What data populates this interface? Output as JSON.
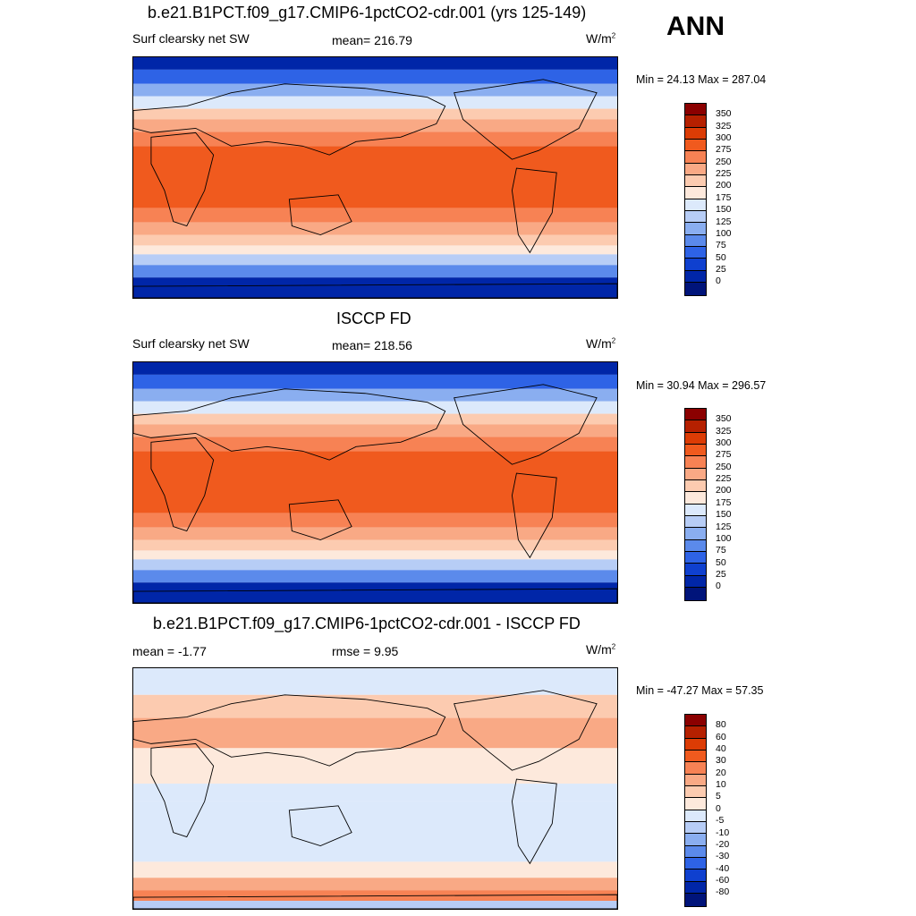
{
  "season": "ANN",
  "panels": [
    {
      "title": "b.e21.B1PCT.f09_g17.CMIP6-1pctCO2-cdr.001 (yrs 125-149)",
      "left_label": "Surf clearsky net SW",
      "center_label": "mean= 216.79",
      "units": "W/m",
      "units_sup": "2",
      "minmax": "Min =  24.13 Max = 287.04",
      "map_kind": "model"
    },
    {
      "title": "ISCCP FD",
      "left_label": "Surf clearsky net SW",
      "center_label": "mean= 218.56",
      "units": "W/m",
      "units_sup": "2",
      "minmax": "Min =  30.94 Max = 296.57",
      "map_kind": "obs"
    },
    {
      "title": "b.e21.B1PCT.f09_g17.CMIP6-1pctCO2-cdr.001 - ISCCP FD",
      "left_label": "mean =  -1.77",
      "center_label": "rmse =   9.95",
      "units": "W/m",
      "units_sup": "2",
      "minmax": "Min = -47.27 Max =  57.35",
      "map_kind": "diff"
    }
  ],
  "colorbar_abs": {
    "labels": [
      "350",
      "325",
      "300",
      "275",
      "250",
      "225",
      "200",
      "175",
      "150",
      "125",
      "100",
      "75",
      "50",
      "25",
      "0"
    ],
    "colors": [
      "#8b0000",
      "#b52000",
      "#dc3c05",
      "#f05a1e",
      "#f78254",
      "#f9a985",
      "#fccbb0",
      "#fde9dc",
      "#dce9fb",
      "#b7cdf6",
      "#8aaef0",
      "#5b8aeb",
      "#2e63e6",
      "#0f40cf",
      "#0026a8",
      "#00147a"
    ]
  },
  "colorbar_diff": {
    "labels": [
      "80",
      "60",
      "40",
      "30",
      "20",
      "10",
      "5",
      "0",
      "-5",
      "-10",
      "-20",
      "-30",
      "-40",
      "-60",
      "-80"
    ],
    "colors": [
      "#8b0000",
      "#b52000",
      "#dc3c05",
      "#f05a1e",
      "#f78254",
      "#f9a985",
      "#fccbb0",
      "#fde9dc",
      "#dce9fb",
      "#b7cdf6",
      "#8aaef0",
      "#5b8aeb",
      "#2e63e6",
      "#0f40cf",
      "#0026a8",
      "#00147a"
    ]
  }
}
